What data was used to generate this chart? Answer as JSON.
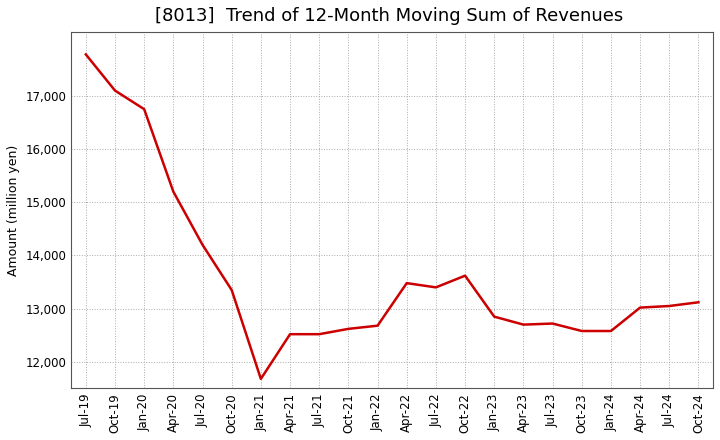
{
  "title": "[8013]  Trend of 12-Month Moving Sum of Revenues",
  "ylabel": "Amount (million yen)",
  "line_color": "#cc0000",
  "line_width": 1.8,
  "background_color": "#ffffff",
  "plot_bg_color": "#ffffff",
  "grid_color": "#aaaaaa",
  "grid_style": ":",
  "x_labels": [
    "Jul-19",
    "Oct-19",
    "Jan-20",
    "Apr-20",
    "Jul-20",
    "Oct-20",
    "Jan-21",
    "Apr-21",
    "Jul-21",
    "Oct-21",
    "Jan-22",
    "Apr-22",
    "Jul-22",
    "Oct-22",
    "Jan-23",
    "Apr-23",
    "Jul-23",
    "Oct-23",
    "Jan-24",
    "Apr-24",
    "Jul-24",
    "Oct-24"
  ],
  "y_values": [
    17780,
    17100,
    16750,
    15200,
    14200,
    13350,
    11680,
    12520,
    12520,
    12620,
    12680,
    13480,
    13400,
    13620,
    12850,
    12700,
    12720,
    12580,
    12580,
    13020,
    13050,
    13120
  ],
  "ylim": [
    11500,
    18200
  ],
  "yticks": [
    12000,
    13000,
    14000,
    15000,
    16000,
    17000
  ],
  "title_fontsize": 13,
  "axis_fontsize": 9,
  "tick_fontsize": 8.5
}
